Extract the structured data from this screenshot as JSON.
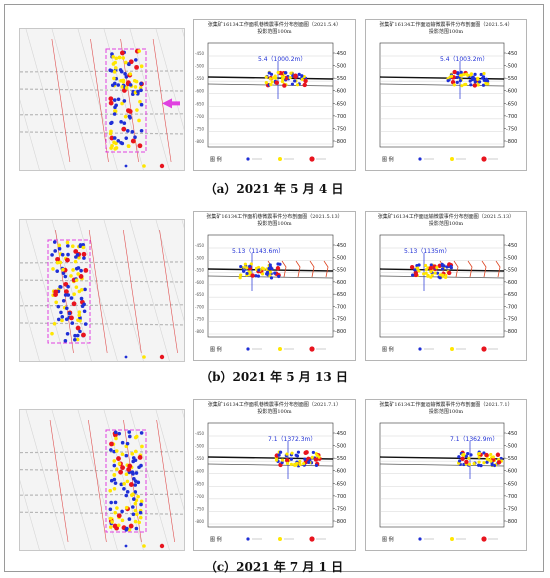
{
  "figure": {
    "captions": [
      "（a）2021 年 5 月 4 日",
      "（b）2021 年 5 月 13 日",
      "（c）2021 年 7 月 1 日"
    ],
    "rows": [
      {
        "titles": [
          [
            "张集矿16134工作面机巷微震事件分布剖面图（2021.5.4）",
            "投影范围100m"
          ],
          [
            "张集矿16134工作面运输微震事件分布剖面图（2021.5.4）",
            "投影范围100m"
          ]
        ],
        "annotations": [
          "5.4（1000.2m）",
          "5.4（1003.2m）"
        ],
        "right_ticks": [
          "-450",
          "-500",
          "-550",
          "-600",
          "-650",
          "-700",
          "-750",
          "-800"
        ],
        "left_ticks": [
          "-450",
          "-500",
          "-550",
          "-600",
          "-650",
          "-700",
          "-750",
          "-800"
        ]
      },
      {
        "titles": [
          [
            "张集矿16134工作面机巷微震事件分布剖面图（2021.5.13）",
            "投影范围100m"
          ],
          [
            "张集矿16134工作面运输微震事件分布剖面图（2021.5.13）",
            "投影范围100m"
          ]
        ],
        "annotations": [
          "5.13（1143.6m）",
          "5.13（1135m）"
        ],
        "right_ticks": [
          "-450",
          "-500",
          "-550",
          "-600",
          "-650",
          "-700",
          "-750",
          "-800"
        ],
        "left_ticks": [
          "-450",
          "-500",
          "-550",
          "-600",
          "-650",
          "-700",
          "-750",
          "-800"
        ]
      },
      {
        "titles": [
          [
            "张集矿16134工作面机巷微震事件分布剖面图（2021.7.1）",
            "投影范围100m"
          ],
          [
            "张集矿16134工作面运输微震事件分布剖面图（2021.7.1）",
            "投影范围100m"
          ]
        ],
        "annotations": [
          "7.1（1372.3m）",
          "7.1（1362.9m）"
        ],
        "right_ticks": [
          "-450",
          "-500",
          "-550",
          "-600",
          "-650",
          "-700",
          "-750",
          "-800"
        ],
        "left_ticks": [
          "-450",
          "-500",
          "-550",
          "-600",
          "-650",
          "-700",
          "-750",
          "-800"
        ]
      }
    ],
    "legend_label": "图 例",
    "colors": {
      "event_blue": "#1f2fd6",
      "event_yellow": "#ffe600",
      "event_red": "#e8141e",
      "magenta": "#e040e0",
      "panel_line": "#2a2a2a"
    }
  }
}
